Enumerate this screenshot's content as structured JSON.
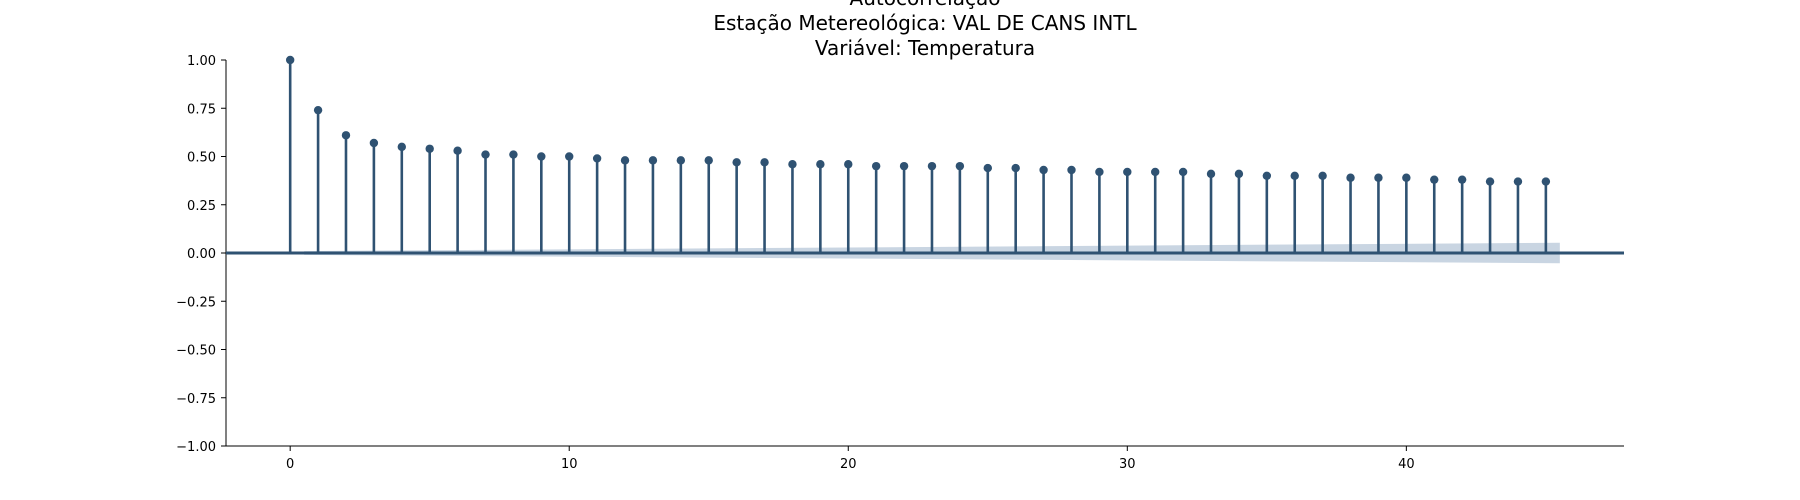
{
  "chart_data": {
    "type": "stem",
    "title_lines": [
      "Autocorrelação",
      "Estação Metereológica: VAL DE CANS INTL",
      "Variável: Temperatura"
    ],
    "xlabel": "",
    "ylabel": "",
    "xlim": [
      -2.3,
      47.8
    ],
    "ylim": [
      -1.0,
      1.0
    ],
    "x_ticks": [
      0,
      10,
      20,
      30,
      40
    ],
    "x_tick_labels": [
      "0",
      "10",
      "20",
      "30",
      "40"
    ],
    "y_ticks": [
      1.0,
      0.75,
      0.5,
      0.25,
      0.0,
      -0.25,
      -0.5,
      -0.75,
      -1.0
    ],
    "y_tick_labels": [
      "1.00",
      "0.75",
      "0.50",
      "0.25",
      "0.00",
      "−0.25",
      "−0.50",
      "−0.75",
      "−1.00"
    ],
    "lags": [
      0,
      1,
      2,
      3,
      4,
      5,
      6,
      7,
      8,
      9,
      10,
      11,
      12,
      13,
      14,
      15,
      16,
      17,
      18,
      19,
      20,
      21,
      22,
      23,
      24,
      25,
      26,
      27,
      28,
      29,
      30,
      31,
      32,
      33,
      34,
      35,
      36,
      37,
      38,
      39,
      40,
      41,
      42,
      43,
      44,
      45
    ],
    "values": [
      1.0,
      0.74,
      0.61,
      0.57,
      0.55,
      0.54,
      0.53,
      0.51,
      0.51,
      0.5,
      0.5,
      0.49,
      0.48,
      0.48,
      0.48,
      0.48,
      0.47,
      0.47,
      0.46,
      0.46,
      0.46,
      0.45,
      0.45,
      0.45,
      0.45,
      0.44,
      0.44,
      0.43,
      0.43,
      0.42,
      0.42,
      0.42,
      0.42,
      0.41,
      0.41,
      0.4,
      0.4,
      0.4,
      0.39,
      0.39,
      0.39,
      0.38,
      0.38,
      0.37,
      0.37,
      0.37
    ],
    "confidence_band": {
      "lag_start": 0.5,
      "lag_end": 45.5,
      "upper_start": 0.01,
      "upper_end": 0.053,
      "lower_start": -0.01,
      "lower_end": -0.053
    },
    "colors": {
      "stem": "#2f5272",
      "band": "#c9d5e2",
      "zero_line": "#2f5272",
      "axis": "#000000"
    },
    "grid": false,
    "legend": "none"
  }
}
